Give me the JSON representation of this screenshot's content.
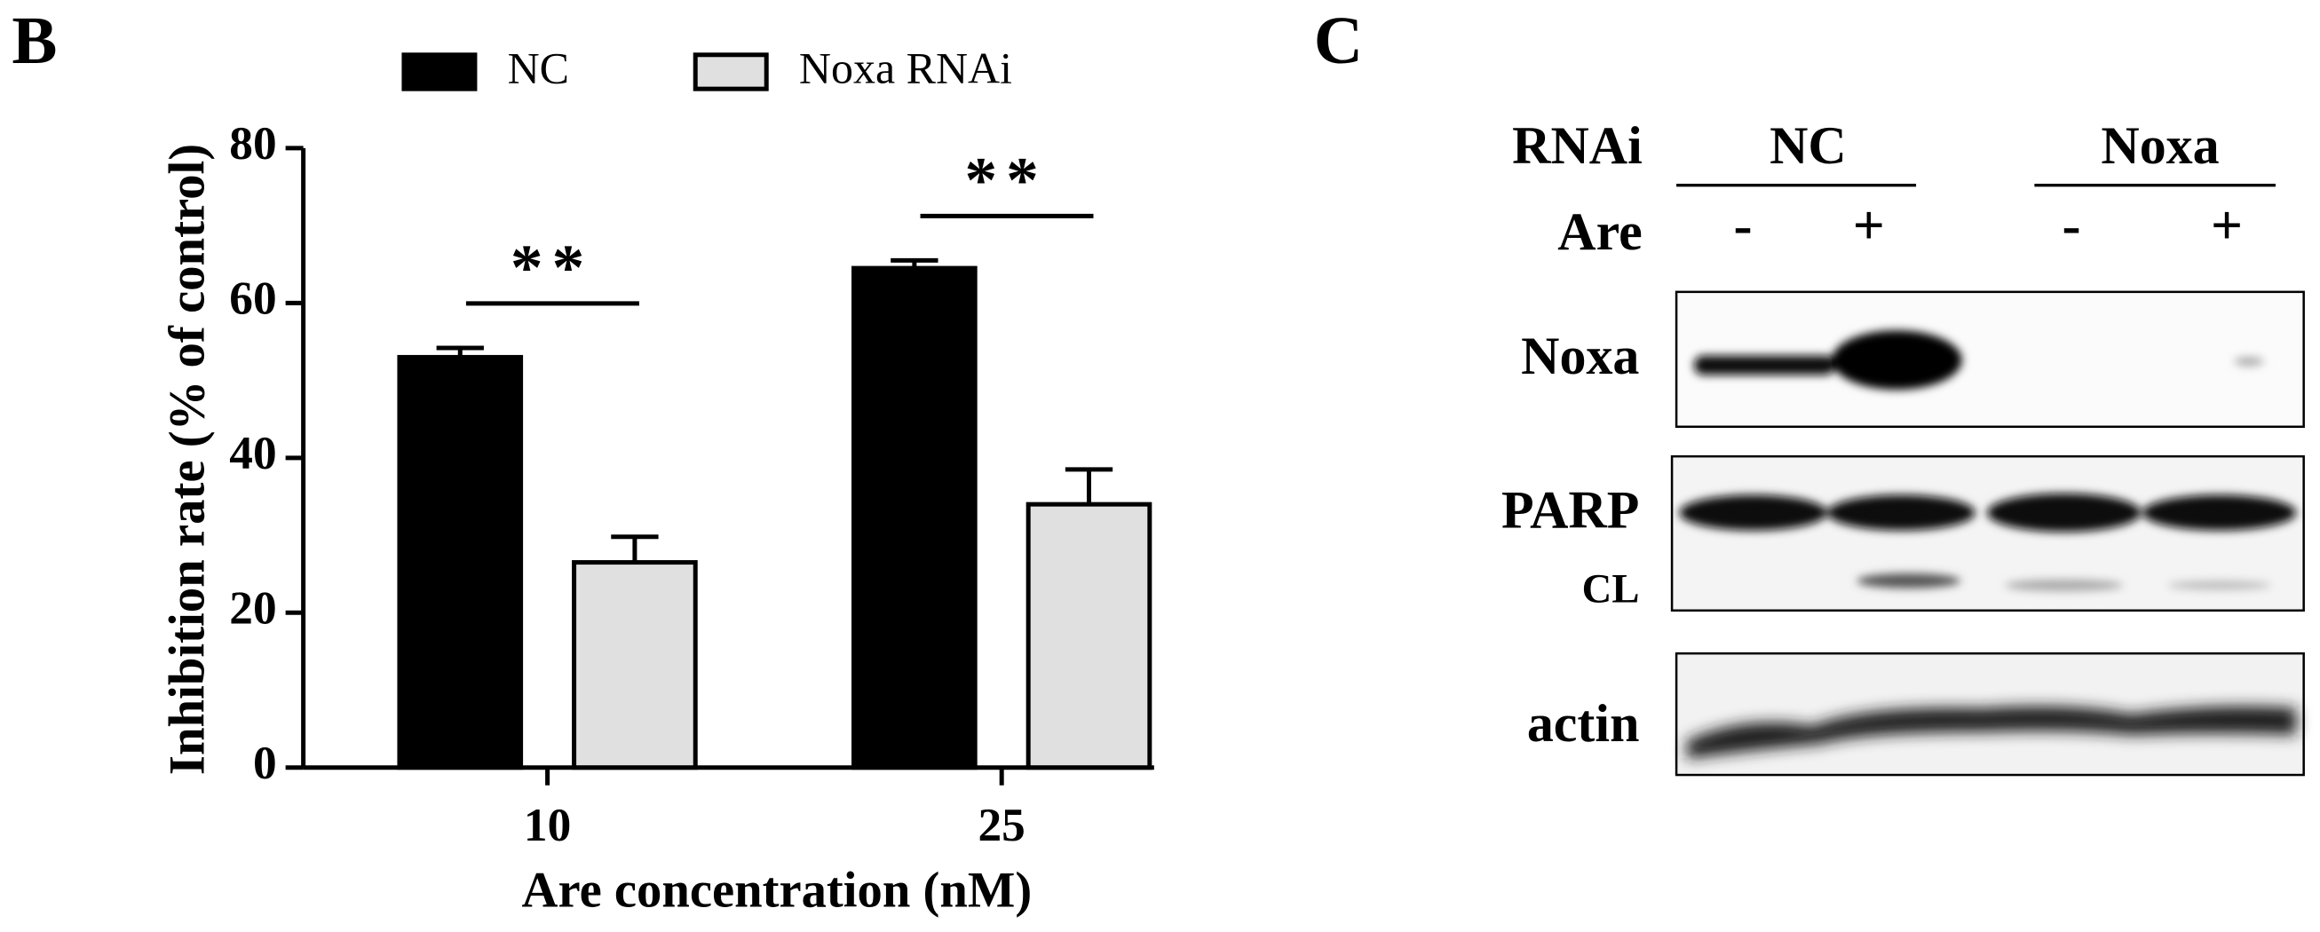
{
  "chart_data": {
    "type": "bar",
    "panel_label": "B",
    "x_label": "Are concentration (nM)",
    "y_label": "Inhibition rate (% of control)",
    "categories": [
      "10",
      "25"
    ],
    "series": [
      {
        "name": "NC",
        "color": "#000000",
        "values": [
          53,
          64.5
        ],
        "errors": [
          1.2,
          1
        ]
      },
      {
        "name": "Noxa RNAi",
        "color": "#e0e0e0",
        "values": [
          26.5,
          34
        ],
        "errors": [
          3.3,
          4.5
        ]
      }
    ],
    "annotations": [
      "**",
      "**"
    ],
    "ylim": [
      0,
      80
    ],
    "yticks": [
      0,
      20,
      40,
      60,
      80
    ],
    "legend": "top"
  },
  "blot": {
    "panel_label": "C",
    "header": {
      "rnai_label": "RNAi",
      "groups": [
        "NC",
        "Noxa"
      ],
      "treatment_label": "Are",
      "lanes": [
        "-",
        "+",
        "-",
        "+"
      ]
    },
    "rows": [
      "Noxa",
      "PARP",
      "CL",
      "actin"
    ]
  }
}
